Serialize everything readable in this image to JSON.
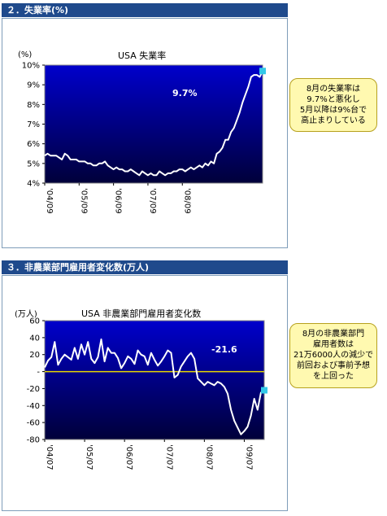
{
  "sections": [
    {
      "header": "２．失業率(%)",
      "chart_title": "USA 失業率",
      "unit": "(%)",
      "callout": [
        "8月の失業率は",
        "9.7%と悪化し",
        "5月以降は9%台で",
        "高止まりしている"
      ],
      "colors": {
        "bg_top": "#0000cc",
        "bg_bottom": "#00003a",
        "line": "#ffffff",
        "marker": "#33c8e8"
      }
    },
    {
      "header": "３．非農業部門雇用者変化数(万人)",
      "chart_title": "USA 非農業部門雇用者変化数",
      "unit": "(万人)",
      "callout": [
        "8月の非農業部門",
        "雇用者数は",
        "21万6000人の減少で",
        "前回および事前予想",
        "を上回った"
      ],
      "colors": {
        "bg_top": "#0000cc",
        "bg_bottom": "#00003a",
        "line": "#ffffff",
        "marker": "#33c8e8",
        "zero_line": "#e8d800"
      }
    }
  ],
  "chart_data": [
    {
      "type": "line",
      "title": "USA 失業率",
      "ylabel": "(%)",
      "ylim": [
        4,
        10
      ],
      "yticks": [
        "4%",
        "5%",
        "6%",
        "7%",
        "8%",
        "9%",
        "10%"
      ],
      "xticks": [
        "'04/09",
        "'05/09",
        "'06/09",
        "'07/09",
        "'08/09"
      ],
      "annotation": "9.7%",
      "series": [
        {
          "values": [
            5.4,
            5.5,
            5.4,
            5.4,
            5.4,
            5.3,
            5.2,
            5.5,
            5.4,
            5.2,
            5.2,
            5.2,
            5.1,
            5.1,
            5.1,
            5.0,
            5.0,
            4.9,
            4.9,
            5.0,
            5.0,
            5.1,
            4.9,
            4.8,
            4.7,
            4.8,
            4.7,
            4.7,
            4.6,
            4.6,
            4.7,
            4.6,
            4.5,
            4.4,
            4.6,
            4.5,
            4.4,
            4.5,
            4.4,
            4.4,
            4.6,
            4.5,
            4.4,
            4.5,
            4.5,
            4.6,
            4.6,
            4.7,
            4.7,
            4.6,
            4.7,
            4.8,
            4.7,
            4.8,
            4.9,
            4.8,
            5.0,
            4.9,
            5.1,
            5.0,
            5.5,
            5.6,
            5.8,
            6.2,
            6.2,
            6.6,
            6.8,
            7.2,
            7.6,
            8.1,
            8.5,
            8.9,
            9.4,
            9.5,
            9.5,
            9.4,
            9.7
          ]
        }
      ]
    },
    {
      "type": "line",
      "title": "USA 非農業部門雇用者変化数",
      "ylabel": "(万人)",
      "ylim": [
        -80,
        60
      ],
      "yticks": [
        "-80",
        "-60",
        "-40",
        "-20",
        "-",
        "20",
        "40",
        "60"
      ],
      "xticks": [
        "'04/07",
        "'05/07",
        "'06/07",
        "'07/07",
        "'08/07",
        "'09/07"
      ],
      "annotation": "-21.6",
      "series": [
        {
          "values": [
            5,
            13,
            17,
            35,
            8,
            15,
            20,
            17,
            14,
            28,
            15,
            32,
            20,
            35,
            15,
            10,
            17,
            38,
            12,
            28,
            22,
            22,
            16,
            4,
            10,
            18,
            15,
            9,
            25,
            20,
            18,
            8,
            22,
            14,
            7,
            12,
            18,
            25,
            22,
            -7,
            -4,
            6,
            12,
            18,
            22,
            15,
            -8,
            -12,
            -16,
            -12,
            -14,
            -16,
            -12,
            -14,
            -18,
            -26,
            -45,
            -58,
            -66,
            -74,
            -70,
            -65,
            -52,
            -32,
            -45,
            -25,
            -22
          ]
        }
      ]
    }
  ]
}
